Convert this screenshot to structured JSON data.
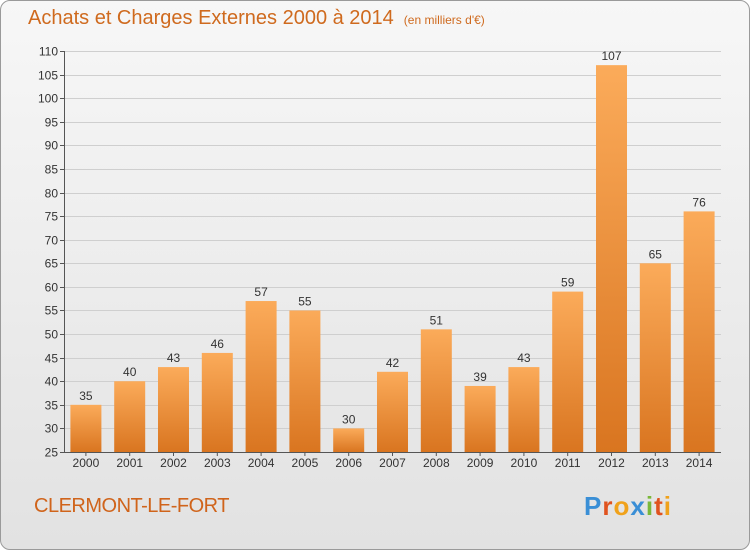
{
  "chart_data": {
    "type": "bar",
    "title": "Achats et Charges Externes 2000 à 2014",
    "unit": "(en milliers d'€)",
    "categories": [
      "2000",
      "2001",
      "2002",
      "2003",
      "2004",
      "2005",
      "2006",
      "2007",
      "2008",
      "2009",
      "2010",
      "2011",
      "2012",
      "2013",
      "2014"
    ],
    "values": [
      35,
      40,
      43,
      46,
      57,
      55,
      30,
      42,
      51,
      39,
      43,
      59,
      107,
      65,
      76
    ],
    "ylim": [
      25,
      110
    ],
    "ytick_step": 5,
    "grid": true,
    "legend": "none",
    "colors": {
      "bar_light": "#fbab5a",
      "bar_dark": "#d97520",
      "text": "#333333",
      "grid": "#cfcfcf"
    }
  },
  "footer": {
    "commune": "CLERMONT-LE-FORT",
    "logo_letters": [
      "P",
      "r",
      "o",
      "x",
      "i",
      "t",
      "i"
    ],
    "logo_colors": [
      "#3a8fd6",
      "#e0531f",
      "#f0a21b",
      "#3a8fd6",
      "#7ab83a",
      "#e0531f",
      "#f0a21b"
    ]
  }
}
